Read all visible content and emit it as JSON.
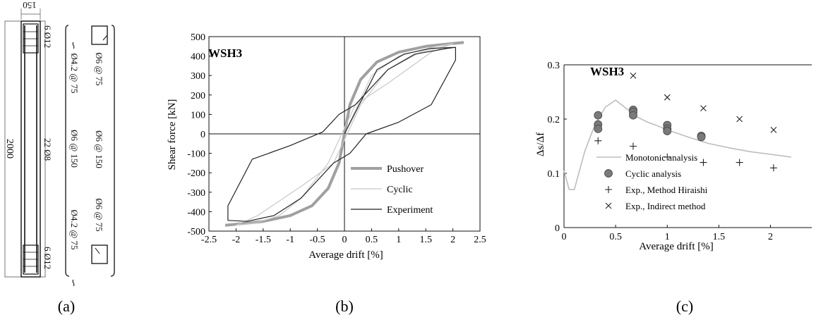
{
  "panel_a": {
    "caption": "(a)",
    "dims": {
      "width": "150",
      "height": "2000"
    },
    "labels": {
      "top_bars": "6 Ø12",
      "bottom_bars": "6 Ø12",
      "middle_bars": "22 Ø8",
      "tie_top": "Ø4.2 @ 75",
      "tie_bottom": "Ø4.2 @ 75",
      "tie_middle": "Ø6 @ 150",
      "stirrup_top": "Ø6 @ 75",
      "stirrup_mid": "Ø6 @ 150",
      "stirrup_bottom": "Ø6 @ 75"
    }
  },
  "chart_data": [
    {
      "id": "b",
      "type": "line",
      "caption": "(b)",
      "title": "WSH3",
      "xlabel": "Average drift [%]",
      "ylabel": "Shear force [kN]",
      "xlim": [
        -2.5,
        2.5
      ],
      "ylim": [
        -500,
        500
      ],
      "xticks": [
        -2.5,
        -2,
        -1.5,
        -1,
        -0.5,
        0,
        0.5,
        1,
        1.5,
        2,
        2.5
      ],
      "yticks": [
        -500,
        -400,
        -300,
        -200,
        -100,
        0,
        100,
        200,
        300,
        400,
        500
      ],
      "legend_position": "bottom-right",
      "series": [
        {
          "name": "Pushover",
          "color": "#a0a0a0",
          "style": "thick",
          "x": [
            -2.2,
            -2.0,
            -1.5,
            -1.0,
            -0.6,
            -0.3,
            -0.1,
            0,
            0.1,
            0.3,
            0.6,
            1.0,
            1.5,
            2.0,
            2.2
          ],
          "y": [
            -470,
            -465,
            -450,
            -420,
            -370,
            -280,
            -150,
            0,
            150,
            280,
            370,
            420,
            450,
            465,
            470
          ]
        },
        {
          "name": "Cyclic",
          "color": "#c8c8c8",
          "style": "thin",
          "x": [
            0,
            0.5,
            1.0,
            1.6,
            2.0,
            1.6,
            0.8,
            0.2,
            -0.3,
            -0.8,
            -1.2,
            -1.6,
            -2.0,
            -1.6,
            -0.8,
            -0.2,
            0.3,
            0.8,
            1.4,
            2.0
          ],
          "y": [
            0,
            300,
            400,
            445,
            465,
            420,
            260,
            150,
            -150,
            -330,
            -420,
            -455,
            -470,
            -420,
            -270,
            -150,
            150,
            330,
            420,
            460
          ]
        },
        {
          "name": "Experiment",
          "color": "#222222",
          "style": "thin",
          "x": [
            0,
            0.6,
            1.1,
            1.6,
            2.05,
            2.05,
            1.6,
            1.0,
            0.4,
            0.1,
            -0.2,
            -0.8,
            -1.3,
            -1.8,
            -2.15,
            -2.15,
            -1.7,
            -1.0,
            -0.4,
            -0.1,
            0.2,
            0.8,
            1.3,
            1.9,
            2.05
          ],
          "y": [
            0,
            330,
            410,
            440,
            445,
            380,
            150,
            60,
            0,
            -100,
            -150,
            -330,
            -420,
            -450,
            -445,
            -370,
            -130,
            -60,
            10,
            100,
            150,
            330,
            410,
            440,
            445
          ]
        }
      ]
    },
    {
      "id": "c",
      "type": "scatter",
      "caption": "(c)",
      "title": "WSH3",
      "xlabel": "Average drift [%]",
      "ylabel": "Δs/Δf",
      "xlim": [
        0,
        2.4
      ],
      "ylim": [
        0,
        0.3
      ],
      "xticks": [
        0,
        0.5,
        1,
        1.5,
        2
      ],
      "yticks": [
        0,
        0.1,
        0.2,
        0.3
      ],
      "legend_position": "bottom-left",
      "series": [
        {
          "name": "Monotonic analysis",
          "marker": "line",
          "color": "#bdbdbd",
          "x": [
            0,
            0.05,
            0.1,
            0.2,
            0.3,
            0.4,
            0.5,
            0.6,
            0.7,
            0.8,
            0.9,
            1.0,
            1.2,
            1.4,
            1.6,
            1.8,
            2.0,
            2.2
          ],
          "y": [
            0.105,
            0.07,
            0.07,
            0.14,
            0.19,
            0.222,
            0.235,
            0.22,
            0.205,
            0.195,
            0.188,
            0.18,
            0.167,
            0.155,
            0.147,
            0.14,
            0.135,
            0.13
          ]
        },
        {
          "name": "Cyclic analysis",
          "marker": "circle",
          "color": "#7a7a7a",
          "x": [
            0.33,
            0.33,
            0.33,
            0.67,
            0.67,
            0.67,
            1.0,
            1.0,
            1.0,
            1.33,
            1.33
          ],
          "y": [
            0.207,
            0.19,
            0.182,
            0.217,
            0.213,
            0.207,
            0.189,
            0.182,
            0.178,
            0.169,
            0.167
          ]
        },
        {
          "name": "Exp., Method Hiraishi",
          "marker": "plus",
          "color": "#222222",
          "x": [
            0.33,
            0.67,
            1.0,
            1.35,
            1.7,
            2.03
          ],
          "y": [
            0.16,
            0.15,
            0.13,
            0.12,
            0.12,
            0.11
          ]
        },
        {
          "name": "Exp., Indirect method",
          "marker": "cross",
          "color": "#222222",
          "x": [
            0.67,
            1.0,
            1.35,
            1.7,
            2.03
          ],
          "y": [
            0.28,
            0.24,
            0.22,
            0.2,
            0.18
          ]
        }
      ]
    }
  ]
}
